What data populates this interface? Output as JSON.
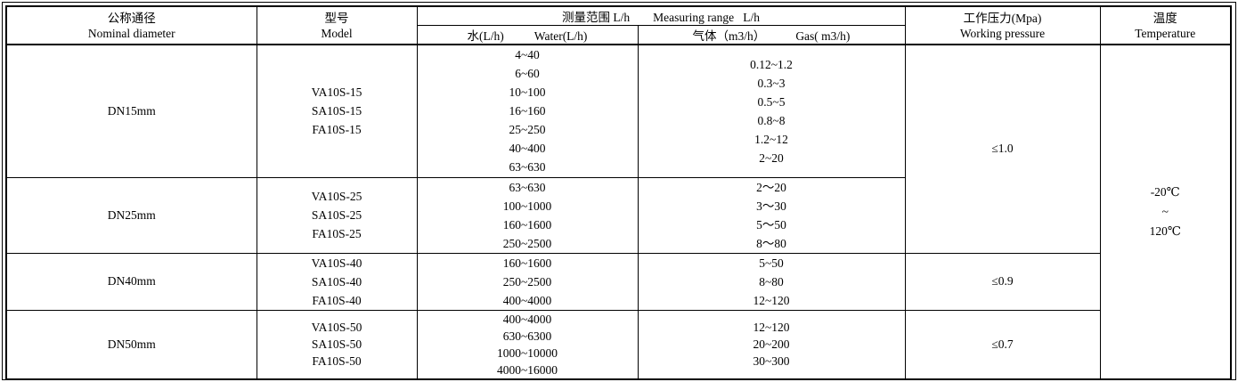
{
  "colors": {
    "border": "#000000",
    "text": "#000000",
    "background": "#ffffff"
  },
  "header": {
    "nominal_cn": "公称通径",
    "nominal_en": "Nominal diameter",
    "model_cn": "型号",
    "model_en": "Model",
    "range_cn": "测量范围 L/h",
    "range_en": "Measuring range   L/h",
    "water_cn": "水(L/h)",
    "water_en": "Water(L/h)",
    "gas_cn": "气体（m3/h）",
    "gas_en": "Gas( m3/h)",
    "pressure_cn": "工作压力(Mpa)",
    "pressure_en": "Working pressure",
    "temp_cn": "温度",
    "temp_en": "Temperature"
  },
  "rows": [
    {
      "diameter": "DN15mm",
      "models": [
        "VA10S-15",
        "SA10S-15",
        "FA10S-15"
      ],
      "water": [
        "4~40",
        "6~60",
        "10~100",
        "16~160",
        "25~250",
        "40~400",
        "63~630"
      ],
      "gas": [
        "0.12~1.2",
        "0.3~3",
        "0.5~5",
        "0.8~8",
        "1.2~12",
        "2~20"
      ],
      "pressure": "≤1.0"
    },
    {
      "diameter": "DN25mm",
      "models": [
        "VA10S-25",
        "SA10S-25",
        "FA10S-25"
      ],
      "water": [
        "63~630",
        "100~1000",
        "160~1600",
        "250~2500"
      ],
      "gas": [
        "2～20",
        "3～30",
        "5～50",
        "8～80"
      ]
    },
    {
      "diameter": "DN40mm",
      "models": [
        "VA10S-40",
        "SA10S-40",
        "FA10S-40"
      ],
      "water": [
        "160~1600",
        "250~2500",
        "400~4000"
      ],
      "gas": [
        "5~50",
        "8~80",
        "12~120"
      ],
      "pressure": "≤0.9"
    },
    {
      "diameter": "DN50mm",
      "models": [
        "VA10S-50",
        "SA10S-50",
        "FA10S-50"
      ],
      "water": [
        "400~4000",
        "630~6300",
        "1000~10000",
        "4000~16000"
      ],
      "gas": [
        "12~120",
        "20~200",
        "30~300"
      ],
      "pressure": "≤0.7"
    }
  ],
  "temperature": [
    "-20℃",
    "~",
    "120℃"
  ]
}
